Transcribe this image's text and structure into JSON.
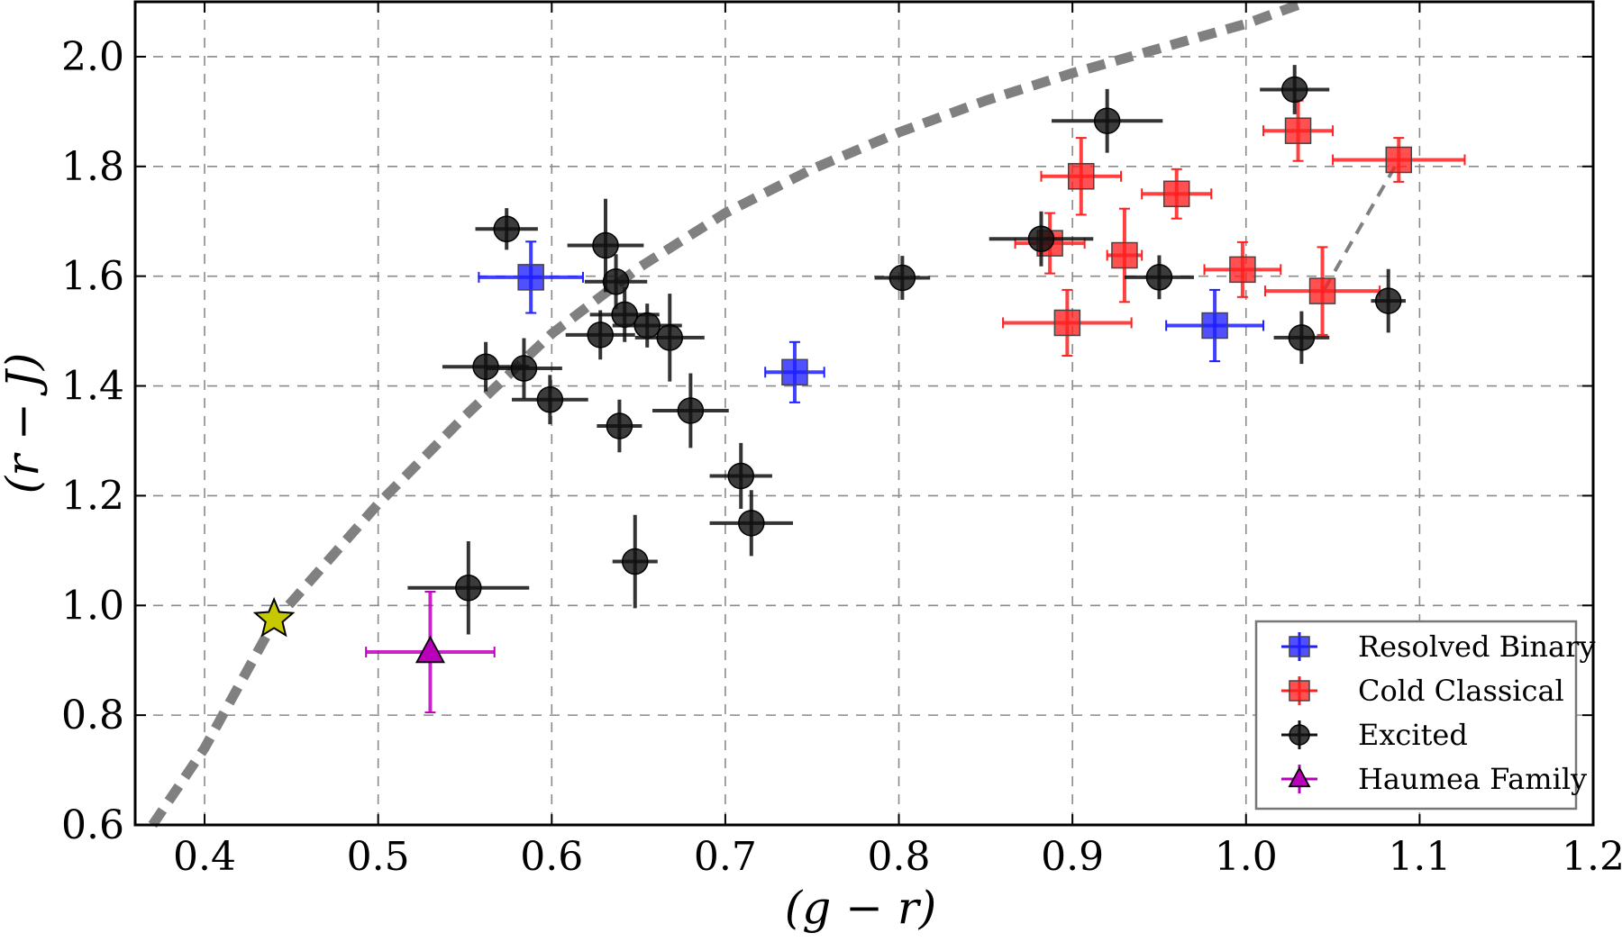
{
  "chart_data": {
    "type": "scatter",
    "xlabel": "(g − r)",
    "ylabel": "(r − J)",
    "xlim": [
      0.36,
      1.2
    ],
    "ylim": [
      0.6,
      2.1
    ],
    "xticks": [
      0.4,
      0.5,
      0.6,
      0.7,
      0.8,
      0.9,
      1.0,
      1.1,
      1.2
    ],
    "yticks": [
      0.6,
      0.8,
      1.0,
      1.2,
      1.4,
      1.6,
      1.8,
      2.0
    ],
    "xtick_labels": [
      "0.4",
      "0.5",
      "0.6",
      "0.7",
      "0.8",
      "0.9",
      "1.0",
      "1.1",
      "1.2"
    ],
    "ytick_labels": [
      "0.6",
      "0.8",
      "1.0",
      "1.2",
      "1.4",
      "1.6",
      "1.8",
      "2.0"
    ],
    "grid": true,
    "legend_position": "bottom-right",
    "series": [
      {
        "name": "Resolved Binary",
        "color": "#1f1fff",
        "marker": "square",
        "points": [
          {
            "x": 0.588,
            "y": 1.598,
            "xerr": 0.03,
            "yerr": 0.065
          },
          {
            "x": 0.74,
            "y": 1.425,
            "xerr": 0.017,
            "yerr": 0.055
          },
          {
            "x": 0.982,
            "y": 1.51,
            "xerr": 0.028,
            "yerr": 0.065
          }
        ]
      },
      {
        "name": "Cold Classical",
        "color": "#ff2020",
        "marker": "square",
        "points": [
          {
            "x": 0.905,
            "y": 1.782,
            "xerr": 0.023,
            "yerr": 0.07
          },
          {
            "x": 0.96,
            "y": 1.75,
            "xerr": 0.02,
            "yerr": 0.045
          },
          {
            "x": 0.887,
            "y": 1.66,
            "xerr": 0.02,
            "yerr": 0.055
          },
          {
            "x": 0.93,
            "y": 1.638,
            "xerr": 0.01,
            "yerr": 0.085
          },
          {
            "x": 0.998,
            "y": 1.612,
            "xerr": 0.022,
            "yerr": 0.05
          },
          {
            "x": 1.044,
            "y": 1.573,
            "xerr": 0.033,
            "yerr": 0.08
          },
          {
            "x": 0.897,
            "y": 1.515,
            "xerr": 0.037,
            "yerr": 0.06
          },
          {
            "x": 1.03,
            "y": 1.865,
            "xerr": 0.02,
            "yerr": 0.055
          },
          {
            "x": 1.088,
            "y": 1.812,
            "xerr": 0.038,
            "yerr": 0.04
          }
        ]
      },
      {
        "name": "Excited",
        "color": "#111111",
        "marker": "circle",
        "points": [
          {
            "x": 0.574,
            "y": 1.686,
            "xerr": 0.018,
            "yerr": 0.038
          },
          {
            "x": 0.631,
            "y": 1.656,
            "xerr": 0.022,
            "yerr": 0.085
          },
          {
            "x": 0.637,
            "y": 1.59,
            "xerr": 0.018,
            "yerr": 0.05
          },
          {
            "x": 0.642,
            "y": 1.53,
            "xerr": 0.02,
            "yerr": 0.05
          },
          {
            "x": 0.628,
            "y": 1.493,
            "xerr": 0.02,
            "yerr": 0.045
          },
          {
            "x": 0.655,
            "y": 1.51,
            "xerr": 0.02,
            "yerr": 0.04
          },
          {
            "x": 0.668,
            "y": 1.488,
            "xerr": 0.02,
            "yerr": 0.08
          },
          {
            "x": 0.562,
            "y": 1.435,
            "xerr": 0.025,
            "yerr": 0.045
          },
          {
            "x": 0.584,
            "y": 1.432,
            "xerr": 0.022,
            "yerr": 0.055
          },
          {
            "x": 0.599,
            "y": 1.375,
            "xerr": 0.022,
            "yerr": 0.045
          },
          {
            "x": 0.68,
            "y": 1.355,
            "xerr": 0.022,
            "yerr": 0.068
          },
          {
            "x": 0.639,
            "y": 1.327,
            "xerr": 0.013,
            "yerr": 0.048
          },
          {
            "x": 0.709,
            "y": 1.236,
            "xerr": 0.018,
            "yerr": 0.06
          },
          {
            "x": 0.715,
            "y": 1.15,
            "xerr": 0.024,
            "yerr": 0.06
          },
          {
            "x": 0.648,
            "y": 1.08,
            "xerr": 0.013,
            "yerr": 0.085
          },
          {
            "x": 0.552,
            "y": 1.032,
            "xerr": 0.035,
            "yerr": 0.085
          },
          {
            "x": 0.802,
            "y": 1.597,
            "xerr": 0.016,
            "yerr": 0.04
          },
          {
            "x": 0.882,
            "y": 1.668,
            "xerr": 0.03,
            "yerr": 0.05
          },
          {
            "x": 0.92,
            "y": 1.883,
            "xerr": 0.032,
            "yerr": 0.058
          },
          {
            "x": 0.95,
            "y": 1.598,
            "xerr": 0.02,
            "yerr": 0.04
          },
          {
            "x": 1.028,
            "y": 1.94,
            "xerr": 0.02,
            "yerr": 0.045
          },
          {
            "x": 1.032,
            "y": 1.488,
            "xerr": 0.016,
            "yerr": 0.048
          },
          {
            "x": 1.082,
            "y": 1.555,
            "xerr": 0.01,
            "yerr": 0.058
          }
        ]
      },
      {
        "name": "Haumea Family",
        "color": "#bb00bb",
        "marker": "triangle",
        "points": [
          {
            "x": 0.53,
            "y": 0.915,
            "xerr": 0.037,
            "yerr": 0.11
          }
        ]
      }
    ],
    "sun": {
      "x": 0.44,
      "y": 0.975,
      "marker": "star",
      "color": "#c8c800"
    },
    "reference_curves": [
      {
        "name": "thick-dashed-curve",
        "color": "#808080",
        "points": [
          [
            0.37,
            0.6
          ],
          [
            0.4,
            0.74
          ],
          [
            0.44,
            0.97
          ],
          [
            0.5,
            1.185
          ],
          [
            0.55,
            1.345
          ],
          [
            0.6,
            1.495
          ],
          [
            0.65,
            1.615
          ],
          [
            0.7,
            1.715
          ],
          [
            0.75,
            1.795
          ],
          [
            0.8,
            1.862
          ],
          [
            0.85,
            1.92
          ],
          [
            0.9,
            1.97
          ],
          [
            0.95,
            2.015
          ],
          [
            1.0,
            2.06
          ],
          [
            1.035,
            2.1
          ]
        ]
      },
      {
        "name": "thin-dashed-line",
        "color": "#808080",
        "points": [
          [
            1.045,
            1.575
          ],
          [
            1.088,
            1.812
          ]
        ]
      }
    ]
  }
}
